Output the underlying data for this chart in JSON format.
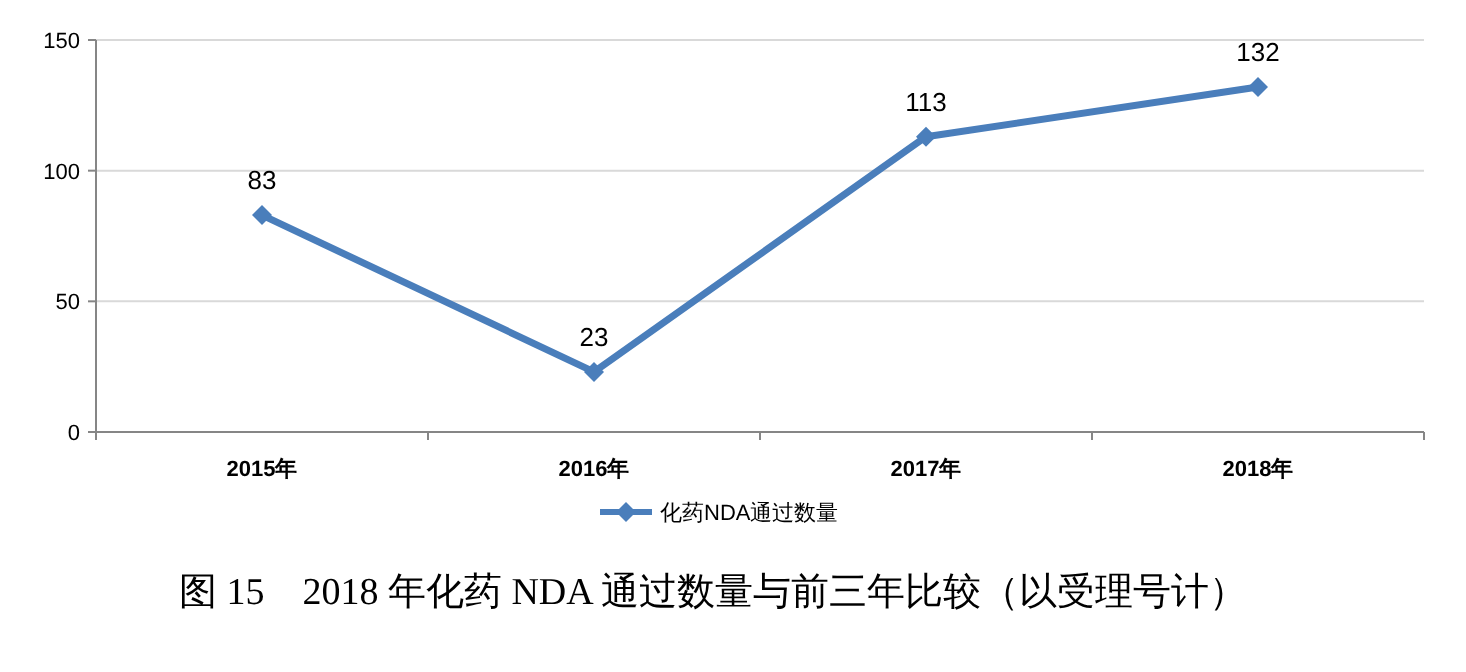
{
  "chart_data": {
    "type": "line",
    "categories": [
      "2015年",
      "2016年",
      "2017年",
      "2018年"
    ],
    "series": [
      {
        "name": "化药NDA通过数量",
        "color": "#4a7ebb",
        "values": [
          83,
          23,
          113,
          132
        ]
      }
    ],
    "ylim": [
      0,
      150
    ],
    "yticks": [
      0,
      50,
      100,
      150
    ],
    "grid": "y",
    "legend": "bottom",
    "marker": "diamond",
    "line_style": "solid",
    "data_labels": true,
    "annotations": [
      "图 15　2018 年化药 NDA 通过数量与前三年比较（以受理号计）"
    ]
  }
}
